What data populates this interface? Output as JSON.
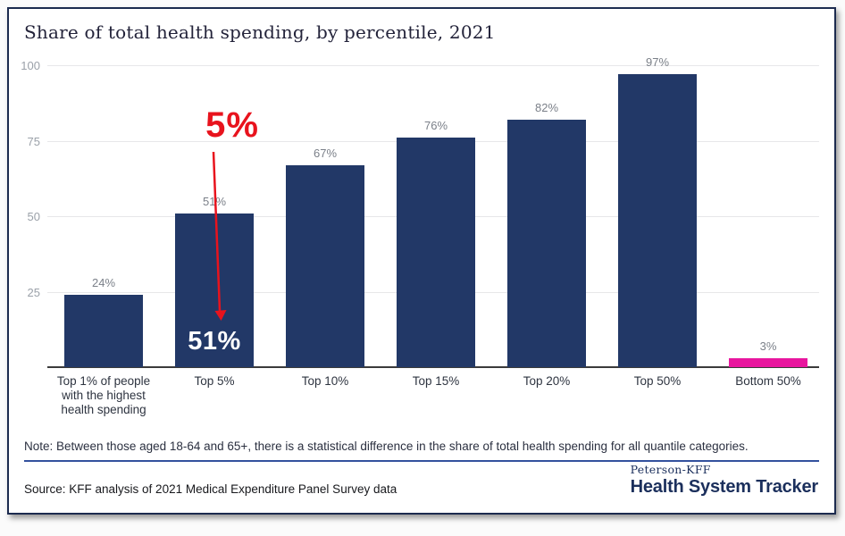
{
  "title": "Share of total health spending, by percentile, 2021",
  "chart_data": {
    "type": "bar",
    "title": "Share of total health spending, by percentile, 2021",
    "categories": [
      "Top 1% of people\nwith the highest\nhealth spending",
      "Top 5%",
      "Top 10%",
      "Top 15%",
      "Top 20%",
      "Top 50%",
      "Bottom 50%"
    ],
    "values": [
      24,
      51,
      67,
      76,
      82,
      97,
      3
    ],
    "value_labels": [
      "24%",
      "51%",
      "67%",
      "76%",
      "82%",
      "97%",
      "3%"
    ],
    "bar_colors": [
      "#223867",
      "#223867",
      "#223867",
      "#223867",
      "#223867",
      "#223867",
      "#e8169e"
    ],
    "xlabel": "",
    "ylabel": "",
    "ylim": [
      0,
      100
    ],
    "yticks": [
      100,
      75,
      50,
      25
    ],
    "grid": true,
    "legend": false
  },
  "annotation": {
    "callout_text": "5%",
    "inside_bar_label": "51%",
    "color": "#e8131d",
    "target_category": "Top 5%"
  },
  "note": "Note: Between those aged 18-64 and 65+, there is a statistical difference in the share of total health spending for all quantile categories.",
  "source": "Source: KFF analysis of 2021 Medical Expenditure Panel Survey data",
  "branding": {
    "org": "Peterson-KFF",
    "product": "Health System Tracker"
  },
  "colors": {
    "bar_navy": "#223867",
    "bar_pink": "#e8169e",
    "annotation_red": "#e8131d",
    "rule_blue": "#33519e",
    "logo_navy": "#1b2f5c",
    "card_border": "#1c2b4f"
  }
}
